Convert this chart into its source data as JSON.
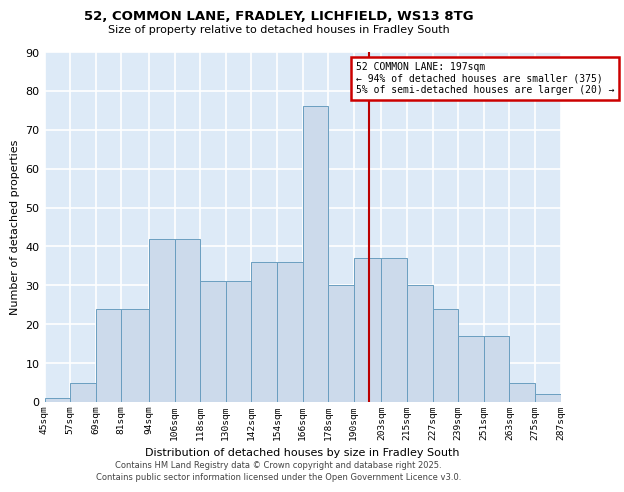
{
  "title1": "52, COMMON LANE, FRADLEY, LICHFIELD, WS13 8TG",
  "title2": "Size of property relative to detached houses in Fradley South",
  "xlabel": "Distribution of detached houses by size in Fradley South",
  "ylabel": "Number of detached properties",
  "bar_color": "#ccdaeb",
  "bar_edge_color": "#6a9ec0",
  "vline_x": 197,
  "vline_color": "#bb0000",
  "annotation_title": "52 COMMON LANE: 197sqm",
  "annotation_line1": "← 94% of detached houses are smaller (375)",
  "annotation_line2": "5% of semi-detached houses are larger (20) →",
  "annotation_box_color": "#cc0000",
  "bin_edges": [
    45,
    57,
    69,
    81,
    94,
    106,
    118,
    130,
    142,
    154,
    166,
    178,
    190,
    203,
    215,
    227,
    239,
    251,
    263,
    275,
    287
  ],
  "bar_heights": [
    1,
    5,
    24,
    24,
    42,
    42,
    31,
    31,
    36,
    36,
    76,
    30,
    37,
    37,
    30,
    24,
    17,
    17,
    5,
    2
  ],
  "tick_labels": [
    "45sqm",
    "57sqm",
    "69sqm",
    "81sqm",
    "94sqm",
    "106sqm",
    "118sqm",
    "130sqm",
    "142sqm",
    "154sqm",
    "166sqm",
    "178sqm",
    "190sqm",
    "203sqm",
    "215sqm",
    "227sqm",
    "239sqm",
    "251sqm",
    "263sqm",
    "275sqm",
    "287sqm"
  ],
  "ylim": [
    0,
    90
  ],
  "yticks": [
    0,
    10,
    20,
    30,
    40,
    50,
    60,
    70,
    80,
    90
  ],
  "background_color": "#ddeaf7",
  "grid_color": "#ffffff",
  "footer1": "Contains HM Land Registry data © Crown copyright and database right 2025.",
  "footer2": "Contains public sector information licensed under the Open Government Licence v3.0."
}
